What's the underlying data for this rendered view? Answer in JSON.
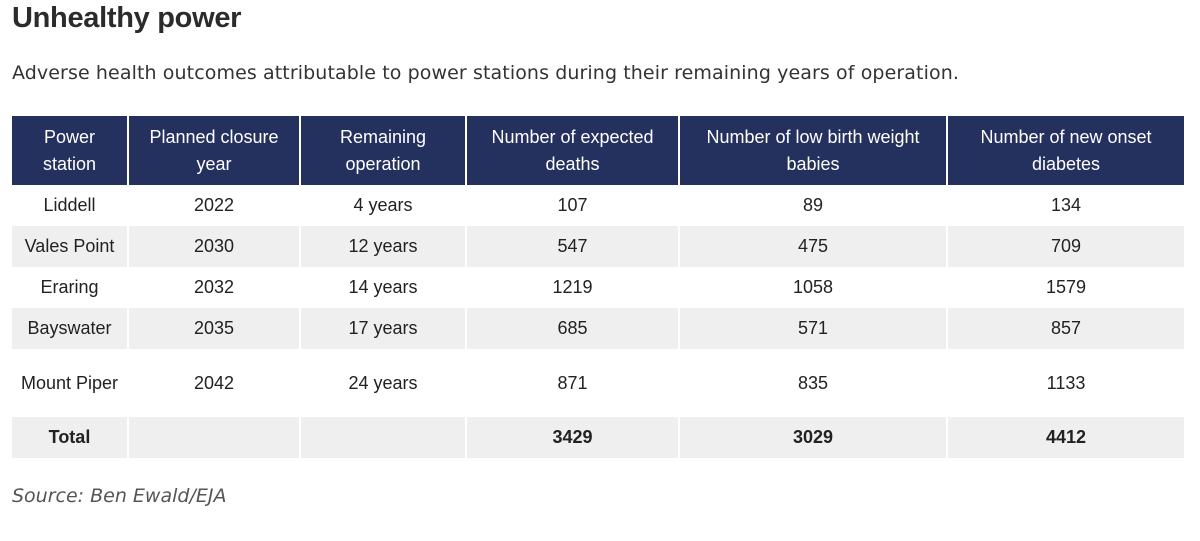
{
  "title": "Unhealthy power",
  "subtitle": "Adverse health outcomes attributable to power stations during their remaining years of operation.",
  "source": "Source: Ben Ewald/EJA",
  "colors": {
    "header_bg": "#24305e",
    "header_text": "#ffffff",
    "stripe_bg": "#efefef"
  },
  "chart_data": {
    "type": "table",
    "columns": [
      "Power station",
      "Planned  closure year",
      "Remaining operation",
      "Number of expected deaths",
      "Number of low birth weight babies",
      "Number of new onset diabetes"
    ],
    "rows": [
      [
        "Liddell",
        "2022",
        "4 years",
        "107",
        "89",
        "134"
      ],
      [
        "Vales Point",
        "2030",
        "12 years",
        "547",
        "475",
        "709"
      ],
      [
        "Eraring",
        "2032",
        "14 years",
        "1219",
        "1058",
        "1579"
      ],
      [
        "Bayswater",
        "2035",
        "17 years",
        "685",
        "571",
        "857"
      ],
      [
        "Mount Piper",
        "2042",
        "24 years",
        "871",
        "835",
        "1133"
      ]
    ],
    "total": [
      "Total",
      "",
      "",
      "3429",
      "3029",
      "4412"
    ]
  }
}
